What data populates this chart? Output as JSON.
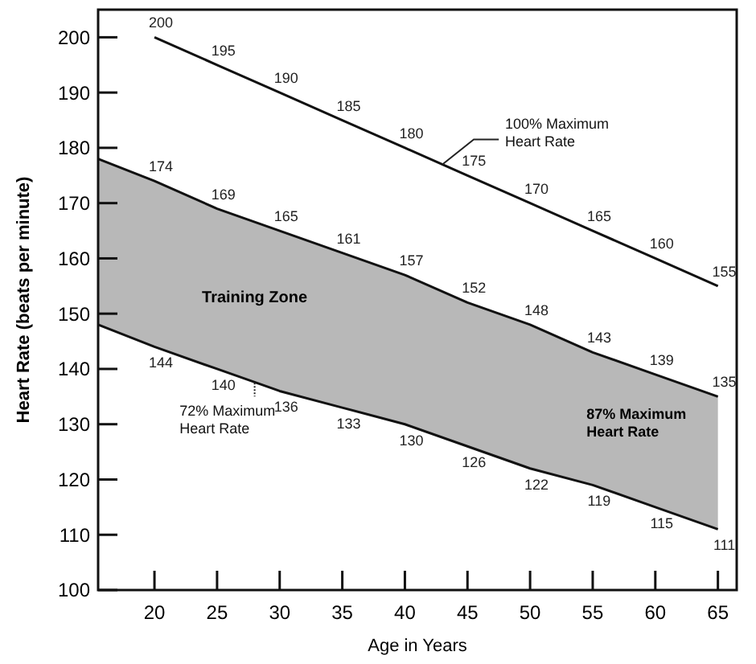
{
  "chart_data": {
    "type": "line",
    "xlabel": "Age in Years",
    "ylabel": "Heart Rate (beats per minute)",
    "xlim": [
      15.5,
      66.5
    ],
    "xticks": [
      20,
      25,
      30,
      35,
      40,
      45,
      50,
      55,
      60,
      65
    ],
    "ylim": [
      100,
      205
    ],
    "yticks": [
      100,
      110,
      120,
      130,
      140,
      150,
      160,
      170,
      180,
      190,
      200
    ],
    "grid": false,
    "marker": "none",
    "line_style": "solid",
    "annotations": [
      "Training Zone"
    ],
    "series": [
      {
        "name": "100% Maximum Heart Rate",
        "color": "#111111",
        "x": [
          20,
          25,
          30,
          35,
          40,
          45,
          50,
          55,
          60,
          65
        ],
        "values": [
          200,
          195,
          190,
          185,
          180,
          175,
          170,
          165,
          160,
          155
        ],
        "value_labels": [
          "200",
          "195",
          "190",
          "185",
          "180",
          "175",
          "170",
          "165",
          "160",
          "155"
        ]
      },
      {
        "name": "87% Maximum Heart Rate",
        "type": "area",
        "color": "#b8b8b8",
        "x": [
          15.5,
          20,
          25,
          30,
          35,
          40,
          45,
          50,
          55,
          60,
          65
        ],
        "values": [
          178,
          174,
          169,
          165,
          161,
          157,
          152,
          148,
          143,
          139,
          135
        ],
        "value_labels": [
          null,
          "174",
          "169",
          "165",
          "161",
          "157",
          "152",
          "148",
          "143",
          "139",
          "135"
        ]
      },
      {
        "name": "72% Maximum Heart Rate",
        "color": "#111111",
        "x": [
          15.5,
          20,
          25,
          30,
          35,
          40,
          45,
          50,
          55,
          60,
          65
        ],
        "values": [
          148,
          144,
          140,
          136,
          133,
          130,
          126,
          122,
          119,
          115,
          111
        ],
        "value_labels": [
          null,
          "144",
          "140",
          "136",
          "133",
          "130",
          "126",
          "122",
          "119",
          "115",
          "111"
        ]
      }
    ]
  }
}
